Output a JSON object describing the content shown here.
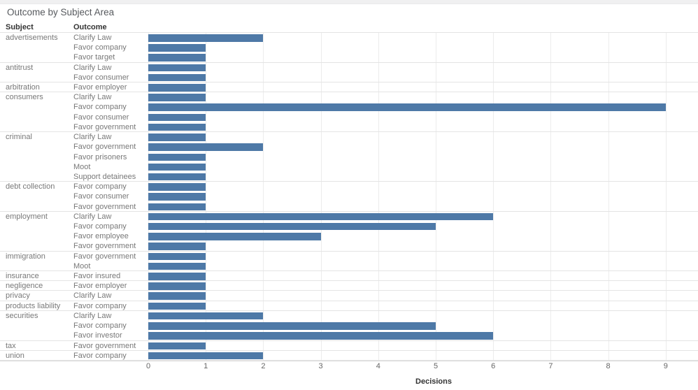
{
  "title": "Outcome by Subject Area",
  "column_headers": {
    "subject": "Subject",
    "outcome": "Outcome"
  },
  "axis": {
    "title": "Decisions",
    "ticks": [
      "0",
      "1",
      "2",
      "3",
      "4",
      "5",
      "6",
      "7",
      "8",
      "9"
    ]
  },
  "colors": {
    "bar": "#4e79a7",
    "gridline": "#ececec",
    "separator": "#e4e4e4",
    "row_text": "#787878",
    "header_text": "#333333",
    "tick_text": "#666666"
  },
  "chart_data": {
    "type": "bar",
    "orientation": "horizontal",
    "title": "Outcome by Subject Area",
    "xlabel": "Decisions",
    "ylabel": "Subject / Outcome",
    "xlim": [
      0,
      9.55
    ],
    "x_ticks": [
      0,
      1,
      2,
      3,
      4,
      5,
      6,
      7,
      8,
      9
    ],
    "grid": true,
    "groups": [
      {
        "subject": "advertisements",
        "rows": [
          {
            "outcome": "Clarify Law",
            "value": 2
          },
          {
            "outcome": "Favor company",
            "value": 1
          },
          {
            "outcome": "Favor target",
            "value": 1
          }
        ]
      },
      {
        "subject": "antitrust",
        "rows": [
          {
            "outcome": "Clarify Law",
            "value": 1
          },
          {
            "outcome": "Favor consumer",
            "value": 1
          }
        ]
      },
      {
        "subject": "arbitration",
        "rows": [
          {
            "outcome": "Favor employer",
            "value": 1
          }
        ]
      },
      {
        "subject": "consumers",
        "rows": [
          {
            "outcome": "Clarify Law",
            "value": 1
          },
          {
            "outcome": "Favor company",
            "value": 9
          },
          {
            "outcome": "Favor consumer",
            "value": 1
          },
          {
            "outcome": "Favor government",
            "value": 1
          }
        ]
      },
      {
        "subject": "criminal",
        "rows": [
          {
            "outcome": "Clarify Law",
            "value": 1
          },
          {
            "outcome": "Favor government",
            "value": 2
          },
          {
            "outcome": "Favor prisoners",
            "value": 1
          },
          {
            "outcome": "Moot",
            "value": 1
          },
          {
            "outcome": "Support detainees",
            "value": 1
          }
        ]
      },
      {
        "subject": "debt collection",
        "rows": [
          {
            "outcome": "Favor company",
            "value": 1
          },
          {
            "outcome": "Favor consumer",
            "value": 1
          },
          {
            "outcome": "Favor government",
            "value": 1
          }
        ]
      },
      {
        "subject": "employment",
        "rows": [
          {
            "outcome": "Clarify Law",
            "value": 6
          },
          {
            "outcome": "Favor company",
            "value": 5
          },
          {
            "outcome": "Favor employee",
            "value": 3
          },
          {
            "outcome": "Favor government",
            "value": 1
          }
        ]
      },
      {
        "subject": "immigration",
        "rows": [
          {
            "outcome": "Favor government",
            "value": 1
          },
          {
            "outcome": "Moot",
            "value": 1
          }
        ]
      },
      {
        "subject": "insurance",
        "rows": [
          {
            "outcome": "Favor insured",
            "value": 1
          }
        ]
      },
      {
        "subject": "negligence",
        "rows": [
          {
            "outcome": "Favor employer",
            "value": 1
          }
        ]
      },
      {
        "subject": "privacy",
        "rows": [
          {
            "outcome": "Clarify Law",
            "value": 1
          }
        ]
      },
      {
        "subject": "products liability",
        "rows": [
          {
            "outcome": "Favor company",
            "value": 1
          }
        ]
      },
      {
        "subject": "securities",
        "rows": [
          {
            "outcome": "Clarify Law",
            "value": 2
          },
          {
            "outcome": "Favor company",
            "value": 5
          },
          {
            "outcome": "Favor investor",
            "value": 6
          }
        ]
      },
      {
        "subject": "tax",
        "rows": [
          {
            "outcome": "Favor government",
            "value": 1
          }
        ]
      },
      {
        "subject": "union",
        "rows": [
          {
            "outcome": "Favor company",
            "value": 2
          }
        ]
      }
    ]
  }
}
